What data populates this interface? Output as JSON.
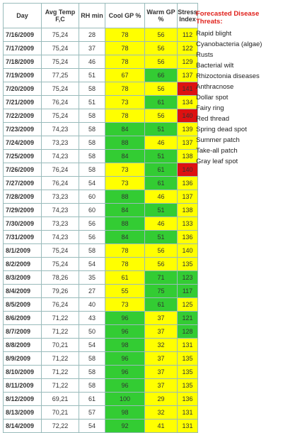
{
  "table": {
    "columns": [
      "Day",
      "Avg Temp F,C",
      "RH min",
      "Cool GP %",
      "Warm GP %",
      "Stress Index"
    ],
    "column_widths": [
      53,
      52,
      36,
      55,
      45,
      28
    ],
    "palette": {
      "y": "#ffff00",
      "g": "#33cc33",
      "r": "#dd1111"
    },
    "rows": [
      [
        "7/16/2009",
        "75,24",
        "28",
        "78",
        "56",
        "112",
        "y",
        "y",
        "y"
      ],
      [
        "7/17/2009",
        "75,24",
        "37",
        "78",
        "56",
        "122",
        "y",
        "y",
        "y"
      ],
      [
        "7/18/2009",
        "75,24",
        "46",
        "78",
        "56",
        "129",
        "y",
        "y",
        "y"
      ],
      [
        "7/19/2009",
        "77,25",
        "51",
        "67",
        "66",
        "137",
        "y",
        "g",
        "y"
      ],
      [
        "7/20/2009",
        "75,24",
        "58",
        "78",
        "56",
        "141",
        "y",
        "y",
        "r"
      ],
      [
        "7/21/2009",
        "76,24",
        "51",
        "73",
        "61",
        "134",
        "y",
        "g",
        "y"
      ],
      [
        "7/22/2009",
        "75,24",
        "58",
        "78",
        "56",
        "140",
        "y",
        "y",
        "r"
      ],
      [
        "7/23/2009",
        "74,23",
        "58",
        "84",
        "51",
        "139",
        "g",
        "g",
        "y"
      ],
      [
        "7/24/2009",
        "73,23",
        "58",
        "88",
        "46",
        "137",
        "g",
        "y",
        "y"
      ],
      [
        "7/25/2009",
        "74,23",
        "58",
        "84",
        "51",
        "138",
        "g",
        "g",
        "y"
      ],
      [
        "7/26/2009",
        "76,24",
        "58",
        "73",
        "61",
        "140",
        "y",
        "g",
        "r"
      ],
      [
        "7/27/2009",
        "76,24",
        "54",
        "73",
        "61",
        "136",
        "y",
        "g",
        "y"
      ],
      [
        "7/28/2009",
        "73,23",
        "60",
        "88",
        "46",
        "137",
        "g",
        "y",
        "y"
      ],
      [
        "7/29/2009",
        "74,23",
        "60",
        "84",
        "51",
        "138",
        "g",
        "g",
        "y"
      ],
      [
        "7/30/2009",
        "73,23",
        "56",
        "88",
        "46",
        "133",
        "g",
        "y",
        "y"
      ],
      [
        "7/31/2009",
        "74,23",
        "56",
        "84",
        "51",
        "136",
        "g",
        "g",
        "y"
      ],
      [
        "8/1/2009",
        "75,24",
        "58",
        "78",
        "56",
        "140",
        "y",
        "y",
        "y"
      ],
      [
        "8/2/2009",
        "75,24",
        "54",
        "78",
        "56",
        "135",
        "y",
        "y",
        "y"
      ],
      [
        "8/3/2009",
        "78,26",
        "35",
        "61",
        "71",
        "123",
        "y",
        "g",
        "g"
      ],
      [
        "8/4/2009",
        "79,26",
        "27",
        "55",
        "75",
        "117",
        "y",
        "g",
        "g"
      ],
      [
        "8/5/2009",
        "76,24",
        "40",
        "73",
        "61",
        "125",
        "y",
        "g",
        "y"
      ],
      [
        "8/6/2009",
        "71,22",
        "43",
        "96",
        "37",
        "121",
        "g",
        "y",
        "g"
      ],
      [
        "8/7/2009",
        "71,22",
        "50",
        "96",
        "37",
        "128",
        "g",
        "y",
        "g"
      ],
      [
        "8/8/2009",
        "70,21",
        "54",
        "98",
        "32",
        "131",
        "g",
        "y",
        "y"
      ],
      [
        "8/9/2009",
        "71,22",
        "58",
        "96",
        "37",
        "135",
        "g",
        "y",
        "y"
      ],
      [
        "8/10/2009",
        "71,22",
        "58",
        "96",
        "37",
        "135",
        "g",
        "y",
        "y"
      ],
      [
        "8/11/2009",
        "71,22",
        "58",
        "96",
        "37",
        "135",
        "g",
        "y",
        "y"
      ],
      [
        "8/12/2009",
        "69,21",
        "61",
        "100",
        "29",
        "136",
        "g",
        "y",
        "y"
      ],
      [
        "8/13/2009",
        "70,21",
        "57",
        "98",
        "32",
        "131",
        "g",
        "y",
        "y"
      ],
      [
        "8/14/2009",
        "72,22",
        "54",
        "92",
        "41",
        "131",
        "g",
        "y",
        "y"
      ]
    ]
  },
  "threats": {
    "title": "Forecasted Disease Threats:",
    "items": [
      "Rapid blight",
      "Cyanobacteria (algae)",
      "Rusts",
      "Bacterial wilt",
      "Rhizoctonia diseases",
      "Anthracnose",
      "Dollar spot",
      "Fairy ring",
      "Red thread",
      "Spring dead spot",
      "Summer patch",
      "Take-all patch",
      "Gray leaf spot"
    ]
  }
}
